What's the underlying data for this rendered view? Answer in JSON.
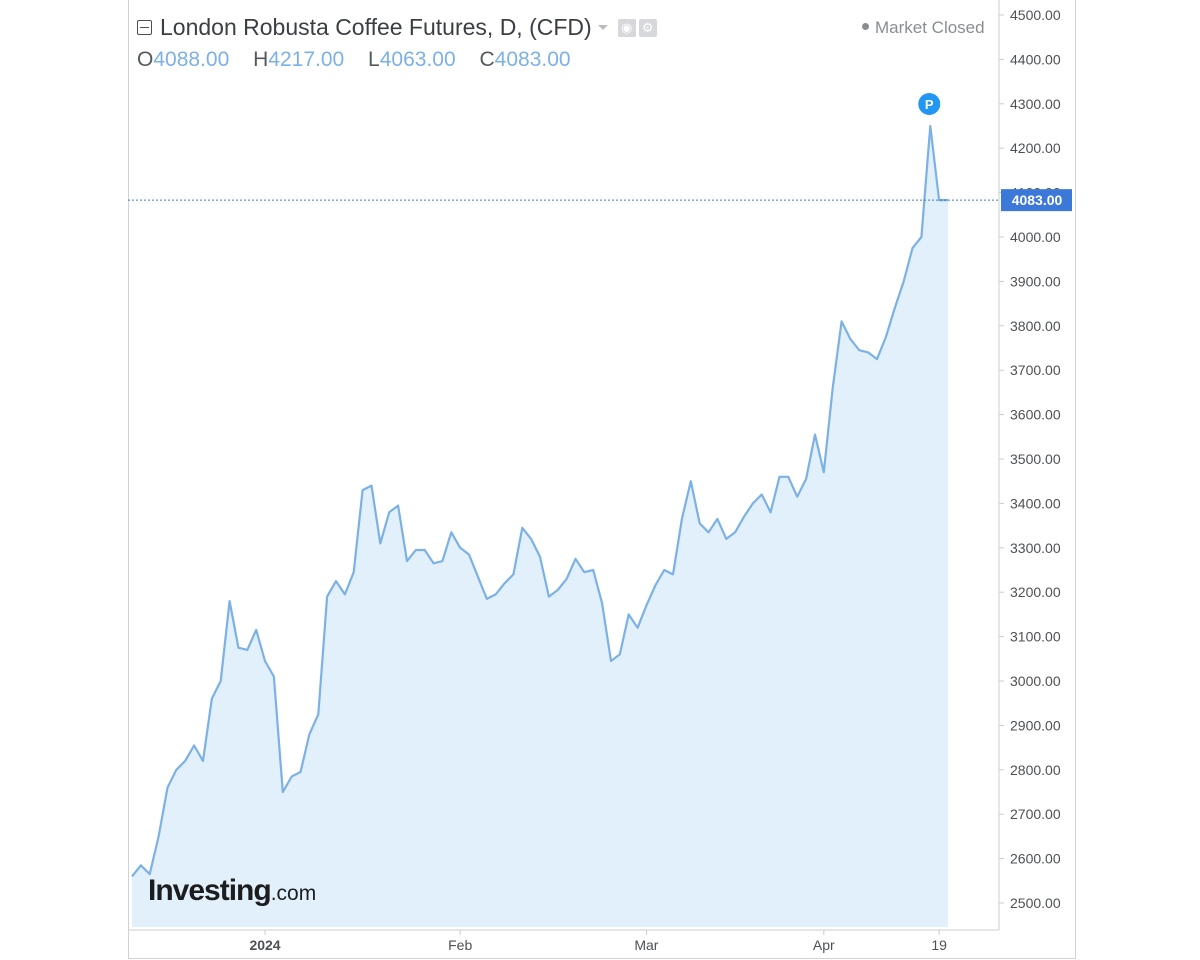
{
  "header": {
    "title": "London Robusta Coffee Futures, D, (CFD)",
    "settings_icon": "gear-icon",
    "eye_icon": "eye-icon",
    "dropdown_icon": "caret-down-icon",
    "collapse_icon": "minus-box-icon"
  },
  "ohlc": {
    "o_label": "O",
    "o_value": "4088.00",
    "h_label": "H",
    "h_value": "4217.00",
    "l_label": "L",
    "l_value": "4063.00",
    "c_label": "C",
    "c_value": "4083.00"
  },
  "status": {
    "text": "Market Closed"
  },
  "logo": {
    "brand": "Investing",
    "suffix": ".com"
  },
  "marker": {
    "label": "P"
  },
  "colors": {
    "line": "#7cb1e6",
    "fill": "#e1f0fa",
    "price_tag": "#3c78d8",
    "marker": "#2196f3",
    "price_line": "#3c78d8"
  },
  "chart_data": {
    "type": "area",
    "title": "London Robusta Coffee Futures, D, (CFD)",
    "xlabel": "",
    "ylabel": "",
    "ylim": [
      2450,
      4560
    ],
    "grid": false,
    "last_price": 4083.0,
    "last_price_label": "4083.00",
    "y_ticks": [
      2500,
      2600,
      2700,
      2800,
      2900,
      3000,
      3100,
      3200,
      3300,
      3400,
      3500,
      3600,
      3700,
      3800,
      3900,
      4000,
      4100,
      4200,
      4300,
      4400,
      4500
    ],
    "y_tick_labels": [
      "2500.00",
      "2600.00",
      "2700.00",
      "2800.00",
      "2900.00",
      "3000.00",
      "3100.00",
      "3200.00",
      "3300.00",
      "3400.00",
      "3500.00",
      "3600.00",
      "3700.00",
      "3800.00",
      "3900.00",
      "4000.00",
      "4100.00",
      "4200.00",
      "4300.00",
      "4400.00",
      "4500.00"
    ],
    "x_ticks": [
      {
        "label": "2024",
        "index": 15,
        "bold": true
      },
      {
        "label": "Feb",
        "index": 37,
        "bold": false
      },
      {
        "label": "Mar",
        "index": 58,
        "bold": false
      },
      {
        "label": "Apr",
        "index": 78,
        "bold": false
      },
      {
        "label": "19",
        "index": 91,
        "bold": false
      }
    ],
    "series": [
      {
        "values": [
          2560,
          2585,
          2565,
          2650,
          2760,
          2800,
          2820,
          2855,
          2820,
          2960,
          3000,
          3180,
          3075,
          3070,
          3115,
          3045,
          3010,
          2750,
          2785,
          2795,
          2880,
          2925,
          3190,
          3225,
          3195,
          3245,
          3430,
          3440,
          3310,
          3380,
          3395,
          3270,
          3295,
          3295,
          3265,
          3270,
          3335,
          3300,
          3285,
          3235,
          3185,
          3195,
          3220,
          3240,
          3345,
          3320,
          3280,
          3190,
          3205,
          3230,
          3275,
          3245,
          3250,
          3175,
          3045,
          3060,
          3150,
          3120,
          3170,
          3215,
          3250,
          3240,
          3365,
          3450,
          3355,
          3335,
          3365,
          3320,
          3335,
          3370,
          3400,
          3420,
          3380,
          3460,
          3460,
          3415,
          3455,
          3555,
          3470,
          3660,
          3810,
          3770,
          3745,
          3740,
          3725,
          3775,
          3840,
          3900,
          3975,
          4000,
          4250,
          4083,
          4083
        ]
      }
    ]
  }
}
